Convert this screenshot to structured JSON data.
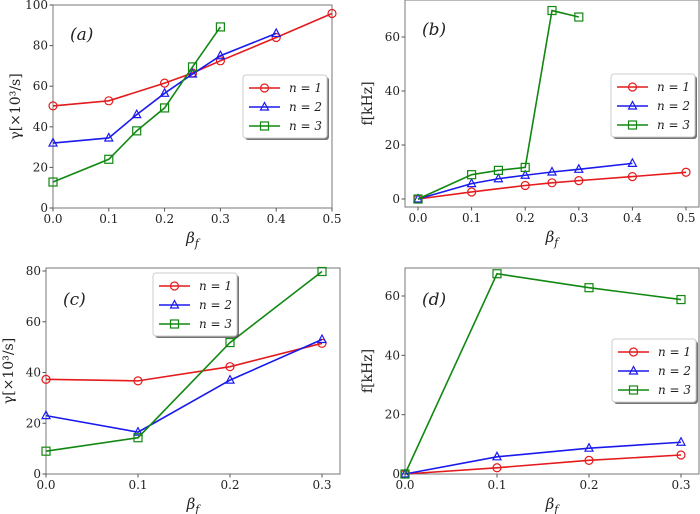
{
  "chart_data": [
    {
      "type": "line",
      "panel": "(a)",
      "xlabel": "β_f",
      "ylabel": "γ[×10³/s]",
      "xlim": [
        0.0,
        0.5
      ],
      "ylim": [
        0,
        100
      ],
      "xticks": [
        0.0,
        0.1,
        0.2,
        0.3,
        0.4,
        0.5
      ],
      "yticks": [
        0,
        20,
        40,
        60,
        80,
        100
      ],
      "legend": "center-right",
      "series": [
        {
          "name": "n = 1",
          "color": "#e41a1c",
          "marker": "circle",
          "x": [
            0.0,
            0.1,
            0.2,
            0.25,
            0.3,
            0.4,
            0.5
          ],
          "y": [
            50.3,
            52.8,
            61.5,
            66.5,
            72.5,
            84.0,
            95.8
          ]
        },
        {
          "name": "n = 2",
          "color": "#1a1aee",
          "marker": "triangle",
          "x": [
            0.0,
            0.1,
            0.15,
            0.2,
            0.25,
            0.3,
            0.4
          ],
          "y": [
            32.0,
            34.5,
            46.0,
            56.5,
            66.0,
            75.0,
            86.0
          ]
        },
        {
          "name": "n = 3",
          "color": "#118811",
          "marker": "square",
          "x": [
            0.0,
            0.1,
            0.15,
            0.2,
            0.25,
            0.3
          ],
          "y": [
            12.8,
            24.0,
            38.0,
            49.3,
            69.5,
            89.2
          ]
        }
      ]
    },
    {
      "type": "line",
      "panel": "(b)",
      "xlabel": "β_f",
      "ylabel": "f[kHz]",
      "xlim": [
        0.0,
        0.5
      ],
      "ylim": [
        -3,
        71
      ],
      "xticks": [
        0.0,
        0.1,
        0.2,
        0.3,
        0.4,
        0.5
      ],
      "yticks": [
        0,
        20,
        40,
        60
      ],
      "legend": "center-right",
      "series": [
        {
          "name": "n = 1",
          "color": "#e41a1c",
          "marker": "circle",
          "x": [
            0.0,
            0.1,
            0.2,
            0.25,
            0.3,
            0.4,
            0.5
          ],
          "y": [
            0.0,
            2.6,
            5.0,
            6.0,
            6.8,
            8.3,
            9.9
          ]
        },
        {
          "name": "n = 2",
          "color": "#1a1aee",
          "marker": "triangle",
          "x": [
            0.0,
            0.1,
            0.15,
            0.2,
            0.25,
            0.3,
            0.4
          ],
          "y": [
            0.0,
            5.7,
            7.5,
            8.8,
            10.0,
            11.0,
            13.2
          ]
        },
        {
          "name": "n = 3",
          "color": "#118811",
          "marker": "square",
          "x": [
            0.0,
            0.1,
            0.15,
            0.2,
            0.25,
            0.3
          ],
          "y": [
            0.0,
            9.0,
            10.6,
            11.7,
            69.8,
            67.4
          ]
        }
      ]
    },
    {
      "type": "line",
      "panel": "(c)",
      "xlabel": "β_f",
      "ylabel": "γ[×10³/s]",
      "xlim": [
        0.0,
        0.32
      ],
      "ylim": [
        0,
        81
      ],
      "xticks": [
        0.0,
        0.1,
        0.2,
        0.3
      ],
      "yticks": [
        0,
        20,
        40,
        60,
        80
      ],
      "legend": "upper-center",
      "series": [
        {
          "name": "n = 1",
          "color": "#e41a1c",
          "marker": "circle",
          "x": [
            0.0,
            0.1,
            0.2,
            0.3
          ],
          "y": [
            37.3,
            36.7,
            42.3,
            51.5
          ]
        },
        {
          "name": "n = 2",
          "color": "#1a1aee",
          "marker": "triangle",
          "x": [
            0.0,
            0.1,
            0.2,
            0.3
          ],
          "y": [
            23.0,
            16.5,
            37.0,
            53.0
          ]
        },
        {
          "name": "n = 3",
          "color": "#118811",
          "marker": "square",
          "x": [
            0.0,
            0.1,
            0.2,
            0.3
          ],
          "y": [
            9.0,
            14.3,
            51.8,
            79.8
          ]
        }
      ]
    },
    {
      "type": "line",
      "panel": "(d)",
      "xlabel": "β_f",
      "ylabel": "f[kHz]",
      "xlim": [
        0.0,
        0.32
      ],
      "ylim": [
        0,
        71
      ],
      "xticks": [
        0.0,
        0.1,
        0.2,
        0.3
      ],
      "yticks": [
        0,
        20,
        40,
        60
      ],
      "legend": "center-right",
      "series": [
        {
          "name": "n = 1",
          "color": "#e41a1c",
          "marker": "circle",
          "x": [
            0.0,
            0.1,
            0.2,
            0.3
          ],
          "y": [
            0.0,
            2.1,
            4.6,
            6.4
          ]
        },
        {
          "name": "n = 2",
          "color": "#1a1aee",
          "marker": "triangle",
          "x": [
            0.0,
            0.1,
            0.2,
            0.3
          ],
          "y": [
            0.0,
            5.8,
            8.7,
            10.7
          ]
        },
        {
          "name": "n = 3",
          "color": "#118811",
          "marker": "square",
          "x": [
            0.0,
            0.1,
            0.2,
            0.3
          ],
          "y": [
            0.0,
            67.5,
            62.8,
            58.8
          ]
        }
      ]
    }
  ]
}
